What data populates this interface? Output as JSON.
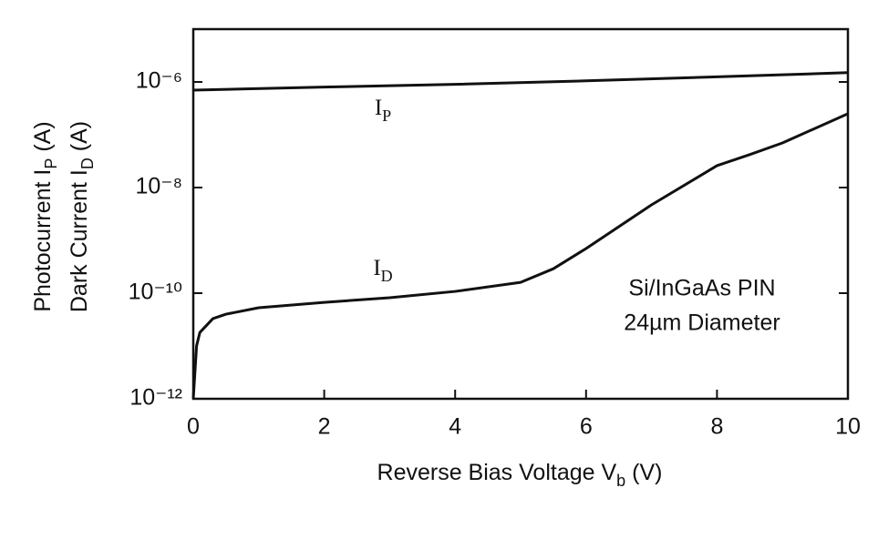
{
  "chart_data": {
    "type": "line",
    "x_label": {
      "main": "Reverse Bias Voltage V",
      "sub": "b",
      "rest": " (V)"
    },
    "y_label": [
      {
        "main": "Photocurrent I",
        "sub": "P",
        "rest": " (A)"
      },
      {
        "main": "Dark Current I",
        "sub": "D",
        "rest": " (A)"
      }
    ],
    "annotations": [
      "Si/InGaAs PIN",
      "24µm Diameter"
    ],
    "xlim": [
      0,
      10
    ],
    "xticks": [
      0,
      2,
      4,
      6,
      8,
      10
    ],
    "ylim": [
      1e-12,
      1e-05
    ],
    "log_y": true,
    "yticks": [
      {
        "value": 1e-12,
        "label": "10⁻¹²"
      },
      {
        "value": 1e-10,
        "label": "10⁻¹⁰"
      },
      {
        "value": 1e-08,
        "label": "10⁻⁸"
      },
      {
        "value": 1e-06,
        "label": "10⁻⁶"
      }
    ],
    "series": [
      {
        "label": {
          "main": "I",
          "sub": "P"
        },
        "color": "#111111",
        "x": [
          0,
          2,
          4,
          6,
          8,
          10
        ],
        "values": [
          7e-07,
          8e-07,
          9e-07,
          1.05e-06,
          1.25e-06,
          1.5e-06
        ]
      },
      {
        "label": {
          "main": "I",
          "sub": "D"
        },
        "color": "#111111",
        "x": [
          0,
          0.05,
          0.1,
          0.3,
          0.5,
          1,
          2,
          3,
          4,
          5,
          5.5,
          6,
          7,
          8,
          8.5,
          9,
          10
        ],
        "values": [
          1e-12,
          1e-11,
          1.8e-11,
          3.3e-11,
          4e-11,
          5.3e-11,
          6.7e-11,
          8.2e-11,
          1.08e-10,
          1.6e-10,
          2.9e-10,
          7e-10,
          4.7e-09,
          2.6e-08,
          4.2e-08,
          7e-08,
          2.5e-07
        ]
      }
    ]
  }
}
